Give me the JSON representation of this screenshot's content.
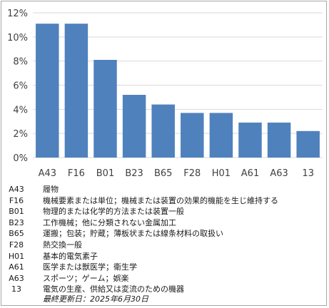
{
  "chart_data": {
    "type": "bar",
    "categories": [
      "A43",
      "F16",
      "B01",
      "B23",
      "B65",
      "F28",
      "H01",
      "A61",
      "A63",
      "13"
    ],
    "values": [
      11.1,
      11.1,
      8.1,
      5.2,
      4.4,
      3.7,
      3.7,
      2.9,
      2.9,
      2.2
    ],
    "ylim": [
      0,
      12
    ],
    "yticks": [
      "0%",
      "2%",
      "4%",
      "6%",
      "8%",
      "10%",
      "12%"
    ],
    "grid": true,
    "bar_color": "#4f81bd"
  },
  "legend": [
    {
      "code": "A43",
      "desc": "履物"
    },
    {
      "code": "F16",
      "desc": "機械要素または単位；機械または装置の効果的機能を生じ維持する"
    },
    {
      "code": "B01",
      "desc": "物理的または化学的方法または装置一般"
    },
    {
      "code": "B23",
      "desc": "工作機械；他に分類されない金属加工"
    },
    {
      "code": "B65",
      "desc": "運搬；包装；貯蔵；薄板状または線条材料の取扱い"
    },
    {
      "code": "F28",
      "desc": "熱交換一般"
    },
    {
      "code": "H01",
      "desc": "基本的電気素子"
    },
    {
      "code": "A61",
      "desc": "医学または獣医学；衛生学"
    },
    {
      "code": "A63",
      "desc": "スポーツ；ゲーム；娯楽"
    },
    {
      "code": "13",
      "desc": "電気の生産、供給又は変流のための機器"
    }
  ],
  "updated": "最終更新日：2025年6月30日"
}
